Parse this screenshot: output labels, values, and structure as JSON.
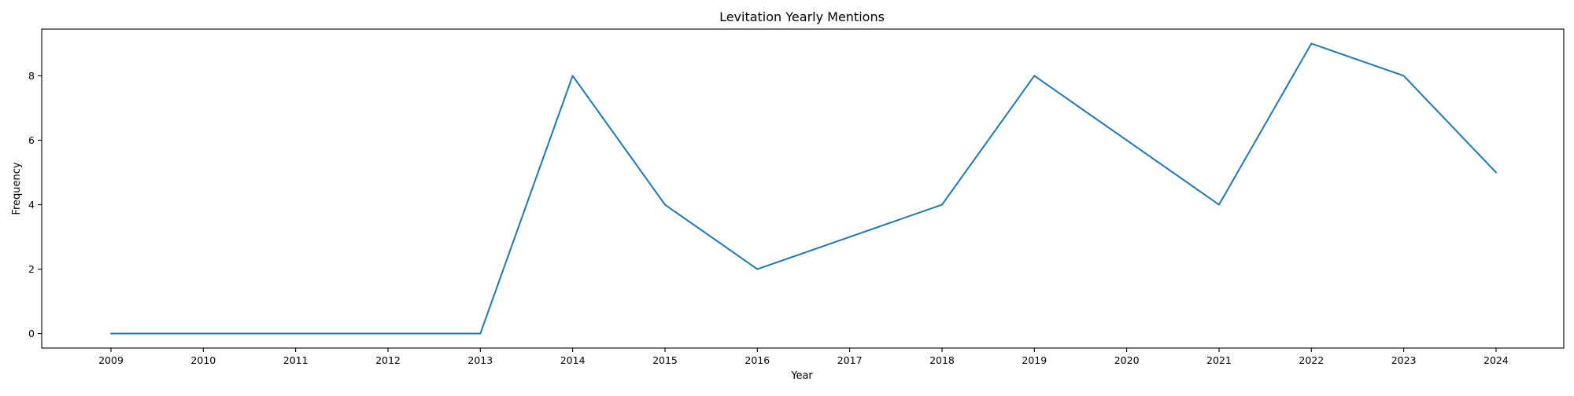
{
  "chart_data": {
    "type": "line",
    "title": "Levitation Yearly Mentions",
    "xlabel": "Year",
    "ylabel": "Frequency",
    "x": [
      "2009",
      "2010",
      "2011",
      "2012",
      "2013",
      "2014",
      "2015",
      "2016",
      "2017",
      "2018",
      "2019",
      "2020",
      "2021",
      "2022",
      "2023",
      "2024"
    ],
    "series": [
      {
        "color": "#1f77b4",
        "values": [
          0,
          0,
          0,
          0,
          0,
          8,
          4,
          2,
          3,
          4,
          8,
          6,
          4,
          9,
          8,
          5
        ]
      }
    ],
    "yticks": [
      0,
      2,
      4,
      6,
      8
    ],
    "ylim": [
      -0.45,
      9.45
    ],
    "grid": false,
    "legend": "none"
  }
}
